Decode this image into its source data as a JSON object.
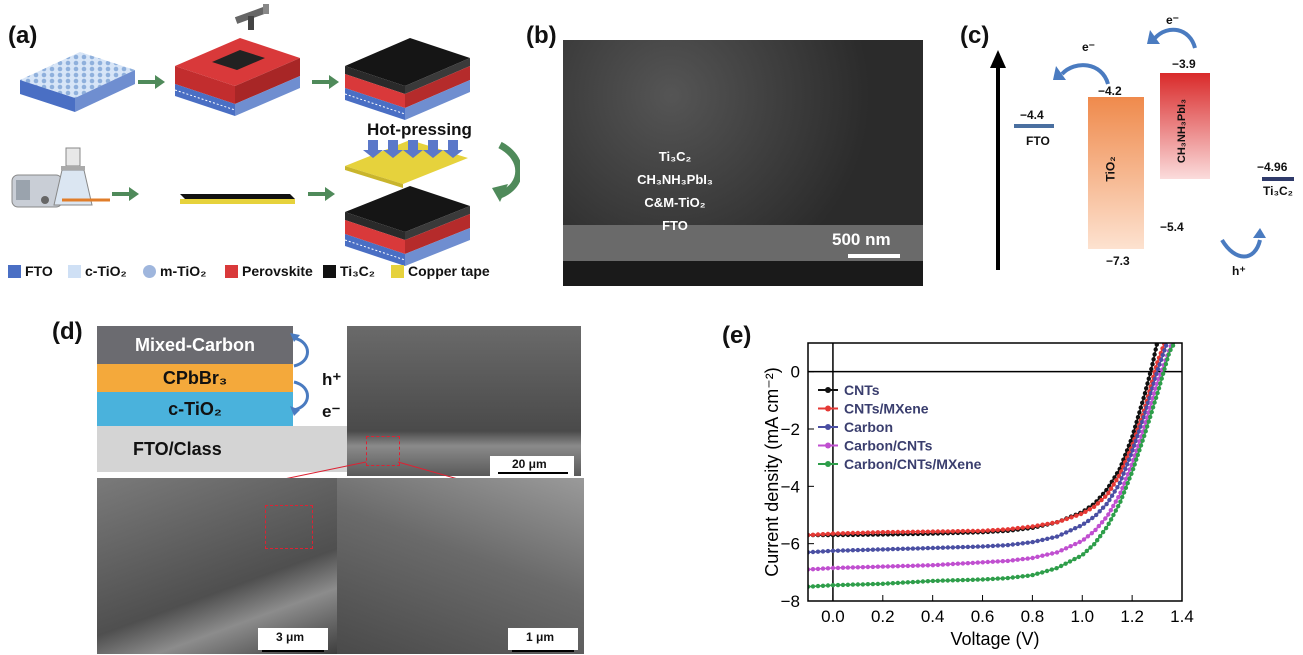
{
  "panels": {
    "a": "(a)",
    "b": "(b)",
    "c": "(c)",
    "d": "(d)",
    "e": "(e)"
  },
  "panel_a": {
    "hot_pressing": "Hot-pressing",
    "legend": [
      {
        "label": "FTO",
        "color": "#4a6fc4"
      },
      {
        "label": "c-TiO₂",
        "color": "#cfe0f5"
      },
      {
        "label": "m-TiO₂",
        "color": "#9fb6dd"
      },
      {
        "label": "Perovskite",
        "color": "#d9393a"
      },
      {
        "label": "Ti₃C₂",
        "color": "#111111"
      },
      {
        "label": "Copper tape",
        "color": "#e6d23c"
      }
    ]
  },
  "panel_b": {
    "layers": [
      "Ti₃C₂",
      "CH₃NH₃PbI₃",
      "C&M-TiO₂",
      "FTO"
    ],
    "scale": "500 nm"
  },
  "panel_c": {
    "fto": {
      "value": "−4.4",
      "label": "FTO"
    },
    "tio2": {
      "top": "−4.2",
      "bottom": "−7.3",
      "label": "TiO₂"
    },
    "perov": {
      "top": "−3.9",
      "bottom": "−5.4",
      "label": "CH₃NH₃PbI₃"
    },
    "ti3c2": {
      "value": "−4.96",
      "label": "Ti₃C₂"
    },
    "electron": "e⁻",
    "hole": "h⁺"
  },
  "panel_d": {
    "layers": [
      "Mixed-Carbon",
      "CPbBr₃",
      "c-TiO₂",
      "FTO/Class"
    ],
    "hole": "h⁺",
    "electron": "e⁻",
    "scales": [
      "20 μm",
      "3 μm",
      "1 μm"
    ]
  },
  "chart_data": {
    "type": "line",
    "xlabel": "Voltage (V)",
    "ylabel": "Current density (mA cm⁻²)",
    "xlim": [
      -0.1,
      1.4
    ],
    "ylim": [
      -8,
      1
    ],
    "xticks": [
      "0.0",
      "0.2",
      "0.4",
      "0.6",
      "0.8",
      "1.0",
      "1.2",
      "1.4"
    ],
    "yticks": [
      "-8",
      "-6",
      "-4",
      "-2",
      "0"
    ],
    "legend_position": "top-left",
    "series": [
      {
        "name": "CNTs",
        "color": "#111111",
        "x": [
          -0.1,
          0.0,
          0.2,
          0.4,
          0.6,
          0.7,
          0.8,
          0.9,
          1.0,
          1.05,
          1.1,
          1.15,
          1.2,
          1.25,
          1.28,
          1.3
        ],
        "y": [
          -5.7,
          -5.7,
          -5.68,
          -5.65,
          -5.6,
          -5.55,
          -5.45,
          -5.25,
          -4.9,
          -4.6,
          -4.1,
          -3.4,
          -2.3,
          -0.8,
          0.2,
          1.0
        ]
      },
      {
        "name": "CNTs/MXene",
        "color": "#e53935",
        "x": [
          -0.1,
          0.0,
          0.2,
          0.4,
          0.6,
          0.7,
          0.8,
          0.9,
          1.0,
          1.05,
          1.1,
          1.15,
          1.2,
          1.25,
          1.3,
          1.33
        ],
        "y": [
          -5.7,
          -5.65,
          -5.6,
          -5.58,
          -5.55,
          -5.5,
          -5.4,
          -5.25,
          -4.95,
          -4.7,
          -4.3,
          -3.6,
          -2.6,
          -1.3,
          0.3,
          1.0
        ]
      },
      {
        "name": "Carbon",
        "color": "#4a4fa3",
        "x": [
          -0.1,
          0.0,
          0.2,
          0.4,
          0.6,
          0.7,
          0.8,
          0.9,
          1.0,
          1.05,
          1.1,
          1.15,
          1.2,
          1.25,
          1.3,
          1.34
        ],
        "y": [
          -6.3,
          -6.25,
          -6.2,
          -6.15,
          -6.1,
          -6.05,
          -5.95,
          -5.75,
          -5.35,
          -5.05,
          -4.6,
          -3.9,
          -2.8,
          -1.5,
          0.0,
          1.0
        ]
      },
      {
        "name": "Carbon/CNTs",
        "color": "#c04fd0",
        "x": [
          -0.1,
          0.0,
          0.2,
          0.4,
          0.6,
          0.7,
          0.8,
          0.9,
          1.0,
          1.05,
          1.1,
          1.15,
          1.2,
          1.25,
          1.3,
          1.36
        ],
        "y": [
          -6.9,
          -6.85,
          -6.8,
          -6.75,
          -6.65,
          -6.6,
          -6.5,
          -6.3,
          -5.9,
          -5.55,
          -5.05,
          -4.3,
          -3.2,
          -1.9,
          -0.4,
          1.0
        ]
      },
      {
        "name": "Carbon/CNTs/MXene",
        "color": "#2e9e4a",
        "x": [
          -0.1,
          0.0,
          0.2,
          0.4,
          0.6,
          0.7,
          0.8,
          0.9,
          1.0,
          1.05,
          1.1,
          1.15,
          1.2,
          1.25,
          1.3,
          1.35,
          1.37
        ],
        "y": [
          -7.5,
          -7.45,
          -7.4,
          -7.3,
          -7.25,
          -7.2,
          -7.1,
          -6.85,
          -6.4,
          -6.0,
          -5.4,
          -4.6,
          -3.5,
          -2.2,
          -0.8,
          0.7,
          1.0
        ]
      }
    ]
  }
}
